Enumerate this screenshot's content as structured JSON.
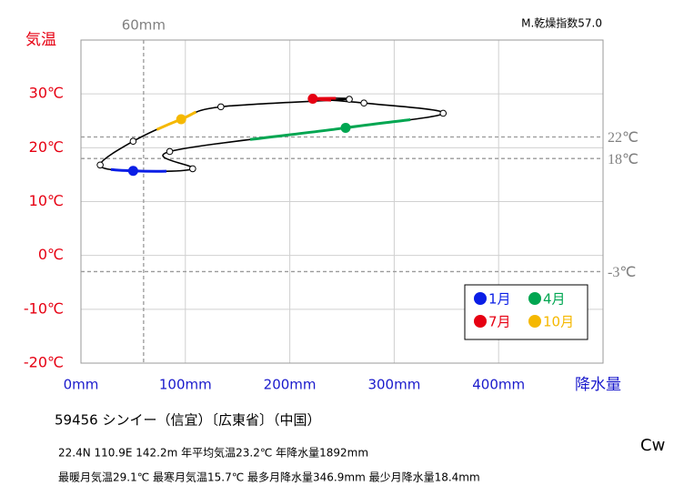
{
  "chart_data": {
    "type": "climograph",
    "y_axis_label": "気温",
    "x_axis_label": "降水量",
    "index_label": "M.乾燥指数57.0",
    "climate": "Cw",
    "caption": [
      "59456  シンイー（信宜）〔広東省〕（中国）",
      "22.4N  110.9E 142.2m  年平均気温23.2℃ 年降水量1892mm",
      "最暖月気温29.1℃ 最寒月気温15.7℃ 最多月降水量346.9mm 最少月降水量18.4mm"
    ],
    "xlim": [
      0,
      500
    ],
    "ylim": [
      -20,
      40
    ],
    "xticks": [
      {
        "value": 0,
        "label": "0mm"
      },
      {
        "value": 100,
        "label": "100mm"
      },
      {
        "value": 200,
        "label": "200mm"
      },
      {
        "value": 300,
        "label": "300mm"
      },
      {
        "value": 400,
        "label": "400mm"
      }
    ],
    "yticks": [
      {
        "value": -20,
        "label": "-20℃"
      },
      {
        "value": -10,
        "label": "-10℃"
      },
      {
        "value": 0,
        "label": "0℃"
      },
      {
        "value": 10,
        "label": "10℃"
      },
      {
        "value": 20,
        "label": "20℃"
      },
      {
        "value": 30,
        "label": "30℃"
      }
    ],
    "grid": true,
    "x": [
      50,
      107,
      85,
      253.5,
      346.9,
      271,
      222,
      257,
      134,
      96,
      50,
      18.4
    ],
    "values": [
      15.7,
      16.1,
      19.3,
      23.7,
      26.4,
      28.3,
      29.1,
      29.0,
      27.6,
      25.3,
      21.2,
      16.8
    ],
    "line_color": "#000000",
    "point_colors": [
      "#0a1ee6",
      null,
      null,
      "#00a651",
      null,
      null,
      "#e60012",
      null,
      null,
      "#f5b800",
      null,
      null
    ],
    "legend": [
      {
        "name": "1月",
        "color": "#0a1ee6"
      },
      {
        "name": "4月",
        "color": "#00a651"
      },
      {
        "name": "7月",
        "color": "#e60012"
      },
      {
        "name": "10月",
        "color": "#f5b800"
      }
    ],
    "ref_lines_x": [
      {
        "value": 60,
        "label": "60mm"
      }
    ],
    "ref_lines_y": [
      {
        "value": 22,
        "label": "22℃"
      },
      {
        "value": 18,
        "label": "18℃"
      },
      {
        "value": -3,
        "label": "-3℃"
      }
    ]
  }
}
